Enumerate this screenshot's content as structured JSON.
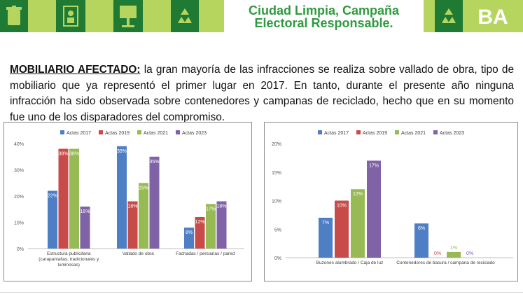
{
  "banner": {
    "title_line1": "Ciudad Limpia, Campaña",
    "title_line2": "Electoral Responsable.",
    "logo_text": "BA"
  },
  "intro": {
    "label": "MOBILIARIO AFECTADO:",
    "text": " la gran mayoría de las infracciones se realiza sobre vallado de obra, tipo de mobiliario que ya representó el primer lugar en 2017. En tanto, durante el presente año ninguna infracción ha sido observada sobre contenedores y campanas de reciclado, hecho que en su momento fue uno de los disparadores del compromiso."
  },
  "colors": {
    "Actas 2017": "#4e7ec4",
    "Actas 2019": "#c74b49",
    "Actas 2021": "#98ba55",
    "Actas 2023": "#8063a6",
    "banner_dark": "#1f7a34",
    "banner_light": "#b6d55e",
    "title": "#2f9a3f"
  },
  "chart_data": [
    {
      "type": "bar",
      "categories": [
        [
          "Estructura publicitaria",
          "(carapantallas, tradicionales y",
          "luminosas)"
        ],
        [
          "Vallado de obra"
        ],
        [
          "Fachadas / persianas / pared"
        ]
      ],
      "series": [
        {
          "name": "Actas 2017",
          "values": [
            22,
            39,
            8
          ]
        },
        {
          "name": "Actas 2019",
          "values": [
            38,
            18,
            12
          ]
        },
        {
          "name": "Actas 2021",
          "values": [
            38,
            25,
            17
          ]
        },
        {
          "name": "Actas 2023",
          "values": [
            16,
            35,
            18
          ]
        }
      ],
      "ylim": [
        0,
        40
      ],
      "yticks": [
        "0%",
        "10%",
        "20%",
        "30%",
        "40%"
      ],
      "legend": "top",
      "grid": false
    },
    {
      "type": "bar",
      "categories": [
        [
          "Buzones alumbrado / Caja de luz"
        ],
        [
          "Contenedores de basura / campana de reciclado"
        ]
      ],
      "series": [
        {
          "name": "Actas 2017",
          "values": [
            7,
            6
          ]
        },
        {
          "name": "Actas 2019",
          "values": [
            10,
            0
          ]
        },
        {
          "name": "Actas 2021",
          "values": [
            12,
            1
          ]
        },
        {
          "name": "Actas 2023",
          "values": [
            17,
            0
          ]
        }
      ],
      "ylim": [
        0,
        20
      ],
      "yticks": [
        "0%",
        "5%",
        "10%",
        "15%",
        "20%"
      ],
      "legend": "top",
      "grid": false
    }
  ]
}
